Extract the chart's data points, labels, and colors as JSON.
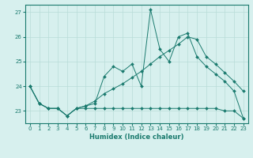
{
  "xlabel": "Humidex (Indice chaleur)",
  "x_hours": [
    0,
    1,
    2,
    3,
    4,
    5,
    6,
    7,
    8,
    9,
    10,
    11,
    12,
    13,
    14,
    15,
    16,
    17,
    18,
    19,
    20,
    21,
    22,
    23
  ],
  "l1": [
    24.0,
    23.3,
    23.1,
    23.1,
    22.8,
    23.1,
    23.2,
    23.3,
    24.4,
    24.8,
    24.6,
    24.9,
    24.0,
    27.1,
    25.5,
    25.0,
    26.0,
    26.15,
    25.2,
    24.8,
    24.5,
    24.2,
    23.8,
    22.7
  ],
  "l2": [
    24.0,
    23.3,
    23.1,
    23.1,
    22.8,
    23.1,
    23.2,
    23.4,
    23.7,
    23.9,
    24.1,
    24.35,
    24.6,
    24.9,
    25.2,
    25.45,
    25.7,
    26.0,
    25.9,
    25.2,
    24.9,
    24.55,
    24.2,
    23.8
  ],
  "l3": [
    24.0,
    23.3,
    23.1,
    23.1,
    22.8,
    23.1,
    23.1,
    23.1,
    23.1,
    23.1,
    23.1,
    23.1,
    23.1,
    23.1,
    23.1,
    23.1,
    23.1,
    23.1,
    23.1,
    23.1,
    23.1,
    23.0,
    23.0,
    22.7
  ],
  "line_color": "#1a7a6e",
  "bg_color": "#d7f0ee",
  "grid_color": "#b8dcd8",
  "xlim": [
    -0.5,
    23.5
  ],
  "ylim": [
    22.5,
    27.3
  ],
  "yticks": [
    23,
    24,
    25,
    26,
    27
  ],
  "xticks": [
    0,
    1,
    2,
    3,
    4,
    5,
    6,
    7,
    8,
    9,
    10,
    11,
    12,
    13,
    14,
    15,
    16,
    17,
    18,
    19,
    20,
    21,
    22,
    23
  ]
}
